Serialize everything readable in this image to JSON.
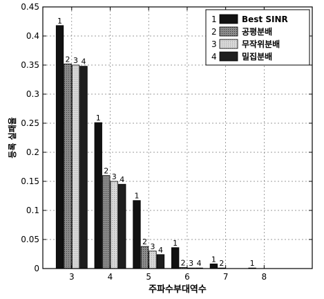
{
  "chart_data": {
    "type": "bar",
    "xlabel": "주파수부대역수",
    "ylabel": "등록 실패율",
    "categories": [
      "3",
      "4",
      "5",
      "6",
      "7",
      "8"
    ],
    "ylim": [
      0,
      0.45
    ],
    "yticks": [
      "0",
      "0.05",
      "0.1",
      "0.15",
      "0.2",
      "0.25",
      "0.3",
      "0.35",
      "0.4",
      "0.45"
    ],
    "grid": true,
    "legend_position": "top-right",
    "series": [
      {
        "name": "Best SINR",
        "marker": "1",
        "values": [
          0.418,
          0.251,
          0.117,
          0.036,
          0.008,
          0.001
        ]
      },
      {
        "name": "공평분배",
        "marker": "2",
        "values": [
          0.352,
          0.16,
          0.038,
          0.002,
          0.001,
          0.0
        ]
      },
      {
        "name": "무작위분배",
        "marker": "3",
        "values": [
          0.35,
          0.15,
          0.03,
          0.001,
          0.0,
          0.0
        ]
      },
      {
        "name": "밀집분배",
        "marker": "4",
        "values": [
          0.348,
          0.145,
          0.024,
          0.001,
          0.0,
          0.0
        ]
      }
    ],
    "colors": [
      "#111111",
      "#7a7a7a",
      "#d2d2d2",
      "#1e1e1e"
    ],
    "legend_markers": [
      "1",
      "2",
      "3",
      "4"
    ]
  }
}
